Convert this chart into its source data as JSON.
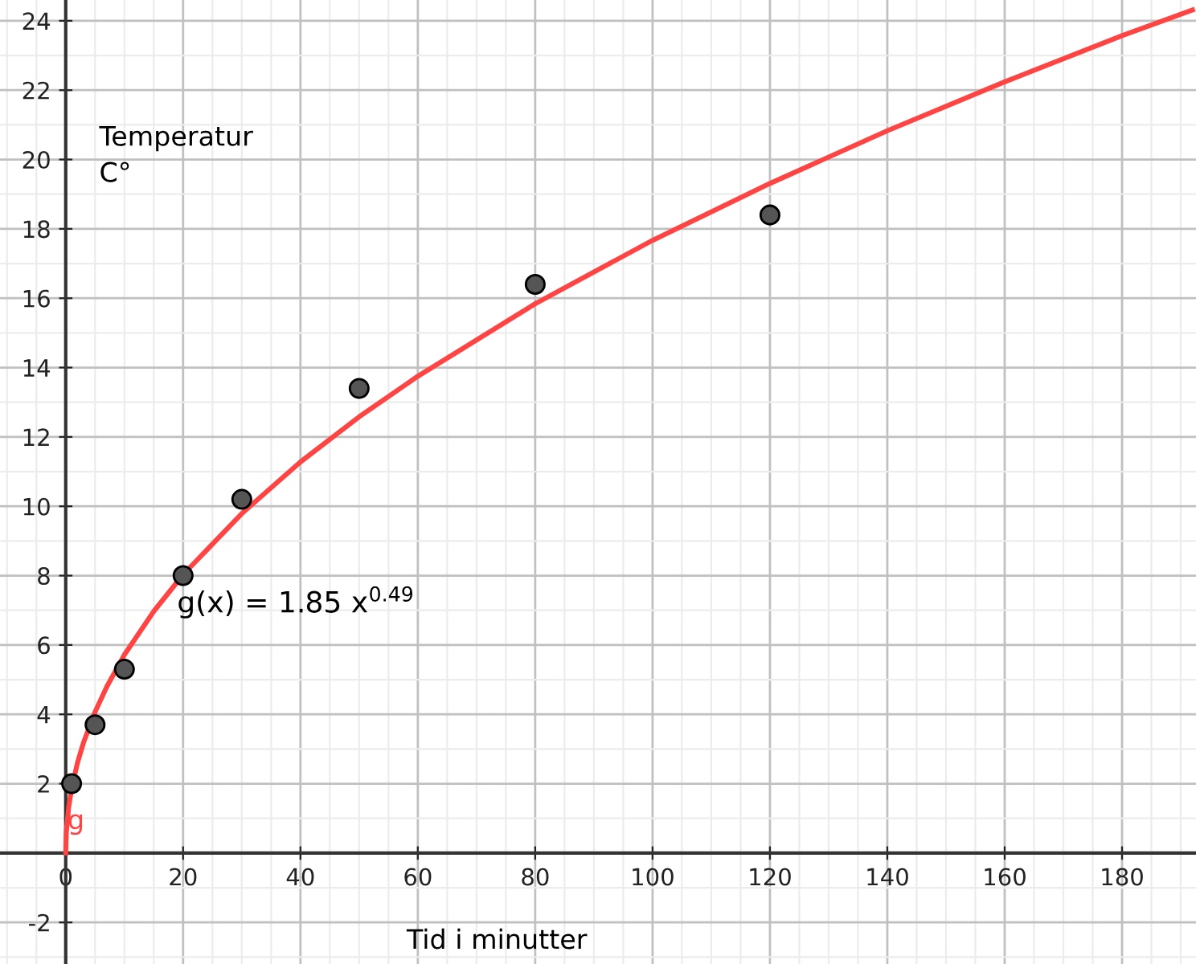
{
  "chart_data": {
    "type": "scatter",
    "xlabel": "Tid i minutter",
    "ylabel": "Temperatur\nC°",
    "xlim": [
      -11.2,
      192.6
    ],
    "ylim": [
      -3.2,
      24.6
    ],
    "xticks": [
      0,
      20,
      40,
      60,
      80,
      100,
      120,
      140,
      160,
      180
    ],
    "yticks": [
      -2,
      2,
      4,
      6,
      8,
      10,
      12,
      14,
      16,
      18,
      20,
      22,
      24
    ],
    "grid": true,
    "marker": "circle",
    "series": [
      {
        "color": "#555555",
        "x": [
          1,
          5,
          10,
          20,
          30,
          50,
          80,
          120
        ],
        "values": [
          2,
          3.7,
          5.3,
          8,
          10.2,
          13.4,
          16.4,
          18.4
        ]
      },
      {
        "type": "line",
        "color": "#ff4444",
        "marker": "none",
        "x": [
          0,
          0.1,
          0.5,
          1,
          2,
          3,
          5,
          7,
          10,
          15,
          20,
          30,
          40,
          50,
          60,
          80,
          100,
          120,
          140,
          160,
          180,
          192
        ],
        "values": [
          0,
          0.6,
          1.32,
          1.85,
          2.6,
          3.17,
          4.07,
          4.8,
          5.72,
          6.97,
          8.03,
          9.79,
          11.28,
          12.58,
          13.75,
          15.84,
          17.67,
          19.31,
          20.83,
          22.24,
          23.57,
          24.31
        ]
      }
    ],
    "annotations": [
      "g(x) = 1.85 x$^{0.49}$",
      {
        "text": "g",
        "x": 0.3,
        "y": 0.9
      }
    ]
  }
}
